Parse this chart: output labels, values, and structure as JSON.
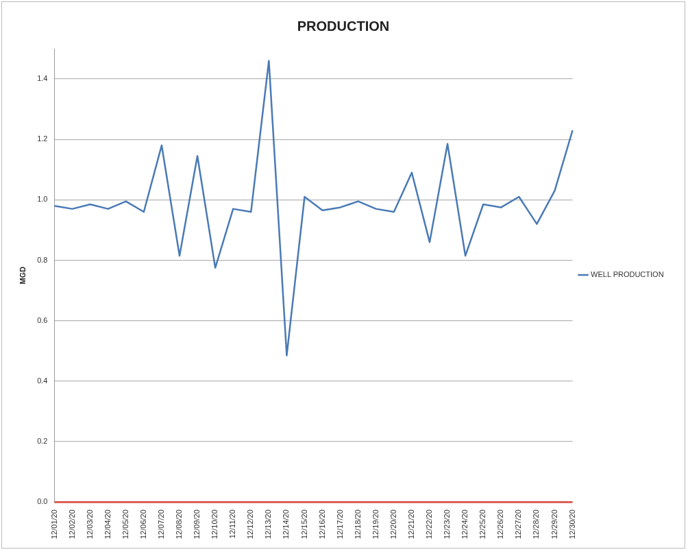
{
  "chart_data": {
    "type": "line",
    "title": "PRODUCTION",
    "ylabel": "MGD",
    "categories": [
      "12/01/20",
      "12/02/20",
      "12/03/20",
      "12/04/20",
      "12/05/20",
      "12/06/20",
      "12/07/20",
      "12/08/20",
      "12/09/20",
      "12/10/20",
      "12/11/20",
      "12/12/20",
      "12/13/20",
      "12/14/20",
      "12/15/20",
      "12/16/20",
      "12/17/20",
      "12/18/20",
      "12/19/20",
      "12/20/20",
      "12/21/20",
      "12/22/20",
      "12/23/20",
      "12/24/20",
      "12/25/20",
      "12/26/20",
      "12/27/20",
      "12/28/20",
      "12/29/20",
      "12/30/20"
    ],
    "series": [
      {
        "name": "WELL PRODUCTION",
        "color": "#4a7ab5",
        "values": [
          0.98,
          0.97,
          0.985,
          0.97,
          0.995,
          0.96,
          1.18,
          0.815,
          1.145,
          0.775,
          0.97,
          0.96,
          1.46,
          0.485,
          1.01,
          0.965,
          0.975,
          0.995,
          0.97,
          0.96,
          1.09,
          0.86,
          1.185,
          0.815,
          0.985,
          0.975,
          1.01,
          0.92,
          1.03,
          1.23
        ]
      },
      {
        "color": "#d9473b",
        "values": [
          0,
          0,
          0,
          0,
          0,
          0,
          0,
          0,
          0,
          0,
          0,
          0,
          0,
          0,
          0,
          0,
          0,
          0,
          0,
          0,
          0,
          0,
          0,
          0,
          0,
          0,
          0,
          0,
          0,
          0
        ]
      }
    ],
    "ylim": [
      0,
      1.5
    ],
    "yticks": [
      {
        "value": 0,
        "label": "0.0"
      },
      {
        "value": 0.2,
        "label": "0.2"
      },
      {
        "value": 0.4,
        "label": "0.4"
      },
      {
        "value": 0.6,
        "label": "0.6"
      },
      {
        "value": 0.8,
        "label": "0.8"
      },
      {
        "value": 1,
        "label": "1.0"
      },
      {
        "value": 1.2,
        "label": "1.2"
      },
      {
        "value": 1.4,
        "label": "1.4"
      }
    ],
    "grid": "y",
    "legend": "right",
    "marker": "none",
    "line_style": "solid"
  }
}
